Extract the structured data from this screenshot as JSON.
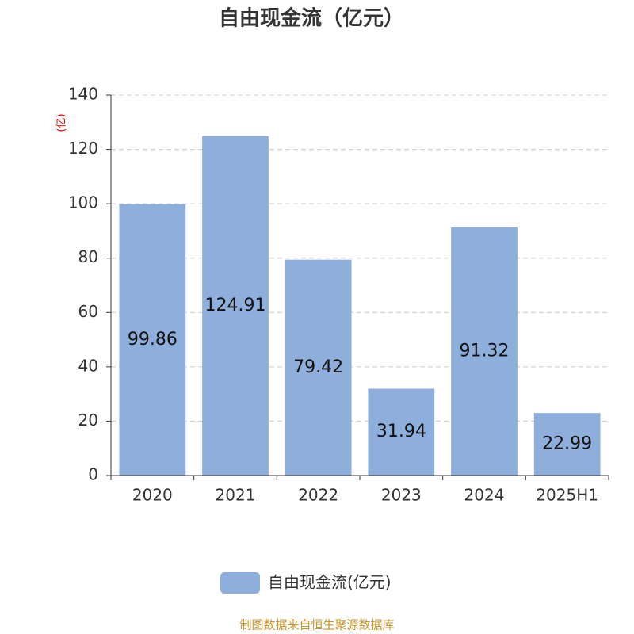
{
  "chart_data": {
    "type": "bar",
    "title": "自由现金流（亿元）",
    "y_label": "(亿)",
    "categories": [
      "2020",
      "2021",
      "2022",
      "2023",
      "2024",
      "2025H1"
    ],
    "series": [
      {
        "name": "自由现金流(亿元)",
        "color": "#8eaedb",
        "values": [
          99.86,
          124.91,
          79.42,
          31.94,
          91.32,
          22.99
        ]
      }
    ],
    "ylim": [
      0,
      140
    ],
    "yticks": [
      0,
      20,
      40,
      60,
      80,
      100,
      120,
      140
    ],
    "grid": true,
    "source": "制图数据来自恒生聚源数据库"
  }
}
